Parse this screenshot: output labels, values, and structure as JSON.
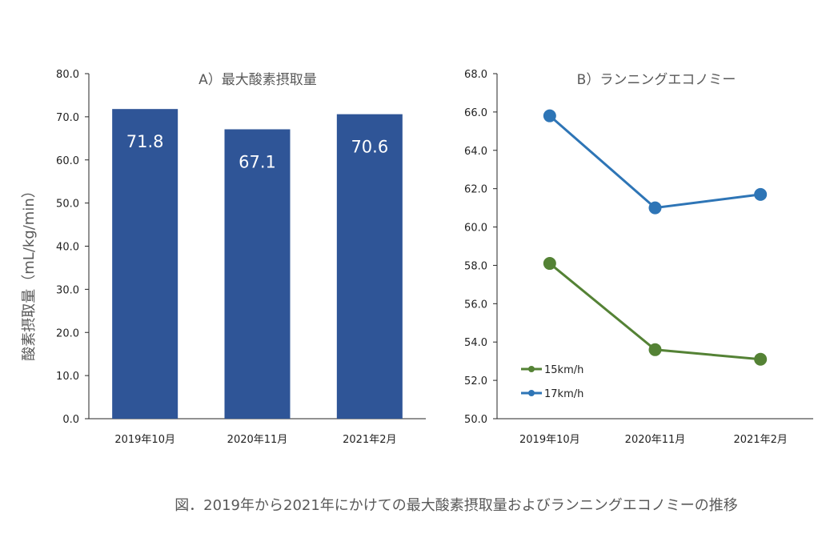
{
  "caption": "図．2019年から2021年にかけての最大酸素摂取量およびランニングエコノミーの推移",
  "chart_data": [
    {
      "type": "bar",
      "title": "A）最大酸素摂取量",
      "ylabel": "酸素摂取量（mL/kg/min）",
      "xlabel": "",
      "categories": [
        "2019年10月",
        "2020年11月",
        "2021年2月"
      ],
      "values": [
        71.8,
        67.1,
        70.6
      ],
      "value_labels": [
        "71.8",
        "67.1",
        "70.6"
      ],
      "ylim": [
        0,
        80
      ],
      "yticks": [
        "0.0",
        "10.0",
        "20.0",
        "30.0",
        "40.0",
        "50.0",
        "60.0",
        "70.0",
        "80.0"
      ],
      "color": "#2F5597",
      "grid": false
    },
    {
      "type": "line",
      "title": "B）ランニングエコノミー",
      "xlabel": "",
      "ylabel": "",
      "categories": [
        "2019年10月",
        "2020年11月",
        "2021年2月"
      ],
      "series": [
        {
          "name": "15km/h",
          "values": [
            58.1,
            53.6,
            53.1
          ],
          "color": "#548235"
        },
        {
          "name": "17km/h",
          "values": [
            65.8,
            61.0,
            61.7
          ],
          "color": "#2E75B6"
        }
      ],
      "ylim": [
        50,
        68
      ],
      "yticks": [
        "50.0",
        "52.0",
        "54.0",
        "56.0",
        "58.0",
        "60.0",
        "62.0",
        "64.0",
        "66.0",
        "68.0"
      ],
      "legend": "bottom-left",
      "grid": false
    }
  ]
}
